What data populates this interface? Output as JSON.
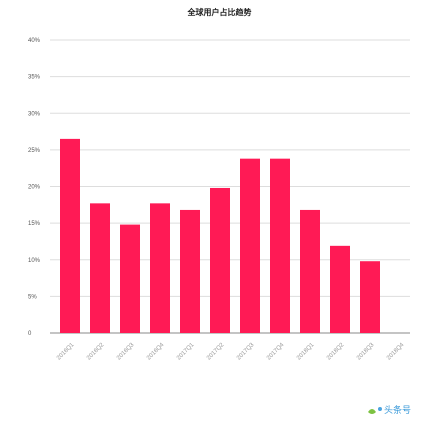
{
  "chart_data": {
    "type": "bar",
    "title": "全球用户占比趋势",
    "xlabel": "",
    "ylabel": "",
    "categories": [
      "2016Q1",
      "2016Q2",
      "2016Q3",
      "2016Q4",
      "2017Q1",
      "2017Q2",
      "2017Q3",
      "2017Q4",
      "2018Q1",
      "2018Q2",
      "2018Q3",
      "2018Q4"
    ],
    "values": [
      26.5,
      17.7,
      14.8,
      17.7,
      16.8,
      19.8,
      23.8,
      23.8,
      16.8,
      11.9,
      9.8,
      null
    ],
    "yticks": [
      "0",
      "5%",
      "10%",
      "15%",
      "20%",
      "25%",
      "30%",
      "35%",
      "40%"
    ],
    "ylim": [
      0,
      40
    ],
    "grid": true,
    "legend": "none",
    "colors": {
      "bar": "#ff1a55",
      "grid": "#dddddd",
      "axis": "#888888",
      "text": "#555555"
    }
  },
  "watermark": {
    "text": "头条号"
  }
}
